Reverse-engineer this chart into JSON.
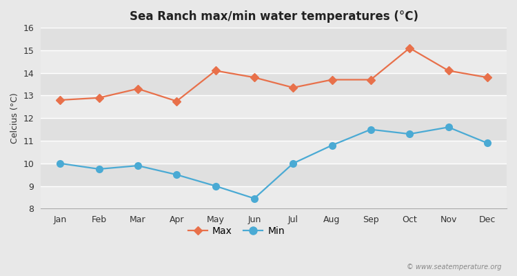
{
  "title": "Sea Ranch max/min water temperatures (°C)",
  "ylabel": "Celcius (°C)",
  "months": [
    "Jan",
    "Feb",
    "Mar",
    "Apr",
    "May",
    "Jun",
    "Jul",
    "Aug",
    "Sep",
    "Oct",
    "Nov",
    "Dec"
  ],
  "max_values": [
    12.8,
    12.9,
    13.3,
    12.75,
    14.1,
    13.8,
    13.35,
    13.7,
    13.7,
    15.1,
    14.1,
    13.8
  ],
  "min_values": [
    10.0,
    9.75,
    9.9,
    9.5,
    9.0,
    8.45,
    10.0,
    10.8,
    11.5,
    11.3,
    11.6,
    10.9
  ],
  "max_color": "#e8704a",
  "min_color": "#4aaad4",
  "bg_color": "#e8e8e8",
  "band_colors": [
    "#ebebeb",
    "#e0e0e0"
  ],
  "grid_color": "#ffffff",
  "ylim": [
    8,
    16
  ],
  "yticks": [
    8,
    9,
    10,
    11,
    12,
    13,
    14,
    15,
    16
  ],
  "legend_labels": [
    "Max",
    "Min"
  ],
  "max_marker": "D",
  "min_marker": "o",
  "max_marker_size": 6,
  "min_marker_size": 8,
  "line_width": 1.6,
  "title_fontsize": 12,
  "axis_fontsize": 9,
  "tick_fontsize": 9,
  "watermark": "© www.seatemperature.org"
}
